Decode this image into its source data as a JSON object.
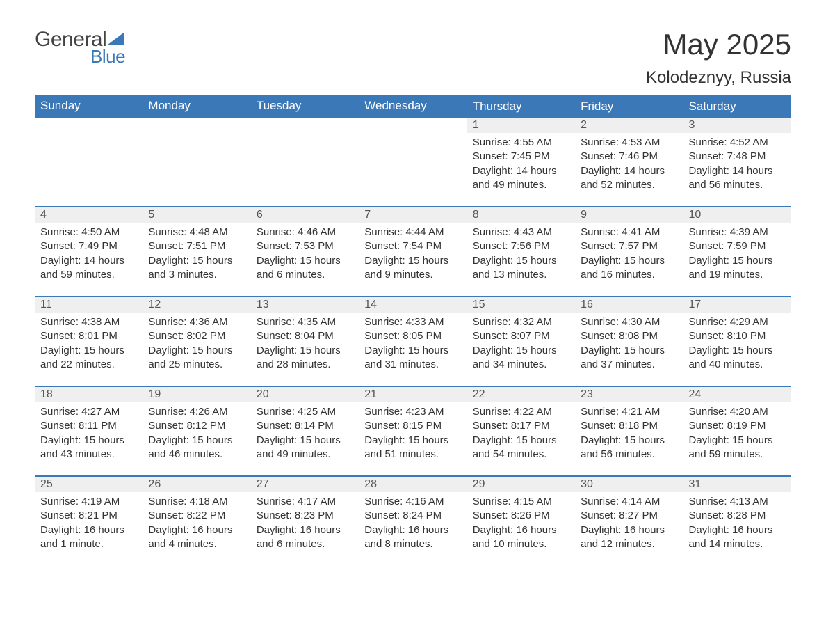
{
  "logo": {
    "word1": "General",
    "word2": "Blue",
    "accent_color": "#3b78b8"
  },
  "title": "May 2025",
  "subtitle": "Kolodeznyy, Russia",
  "header_bg": "#3b78b8",
  "header_fg": "#ffffff",
  "daynum_bg": "#efefef",
  "border_color": "#3b78b8",
  "text_color": "#333333",
  "background_color": "#ffffff",
  "columns": [
    "Sunday",
    "Monday",
    "Tuesday",
    "Wednesday",
    "Thursday",
    "Friday",
    "Saturday"
  ],
  "weeks": [
    [
      null,
      null,
      null,
      null,
      {
        "n": "1",
        "sr": "4:55 AM",
        "ss": "7:45 PM",
        "dl": "14 hours and 49 minutes."
      },
      {
        "n": "2",
        "sr": "4:53 AM",
        "ss": "7:46 PM",
        "dl": "14 hours and 52 minutes."
      },
      {
        "n": "3",
        "sr": "4:52 AM",
        "ss": "7:48 PM",
        "dl": "14 hours and 56 minutes."
      }
    ],
    [
      {
        "n": "4",
        "sr": "4:50 AM",
        "ss": "7:49 PM",
        "dl": "14 hours and 59 minutes."
      },
      {
        "n": "5",
        "sr": "4:48 AM",
        "ss": "7:51 PM",
        "dl": "15 hours and 3 minutes."
      },
      {
        "n": "6",
        "sr": "4:46 AM",
        "ss": "7:53 PM",
        "dl": "15 hours and 6 minutes."
      },
      {
        "n": "7",
        "sr": "4:44 AM",
        "ss": "7:54 PM",
        "dl": "15 hours and 9 minutes."
      },
      {
        "n": "8",
        "sr": "4:43 AM",
        "ss": "7:56 PM",
        "dl": "15 hours and 13 minutes."
      },
      {
        "n": "9",
        "sr": "4:41 AM",
        "ss": "7:57 PM",
        "dl": "15 hours and 16 minutes."
      },
      {
        "n": "10",
        "sr": "4:39 AM",
        "ss": "7:59 PM",
        "dl": "15 hours and 19 minutes."
      }
    ],
    [
      {
        "n": "11",
        "sr": "4:38 AM",
        "ss": "8:01 PM",
        "dl": "15 hours and 22 minutes."
      },
      {
        "n": "12",
        "sr": "4:36 AM",
        "ss": "8:02 PM",
        "dl": "15 hours and 25 minutes."
      },
      {
        "n": "13",
        "sr": "4:35 AM",
        "ss": "8:04 PM",
        "dl": "15 hours and 28 minutes."
      },
      {
        "n": "14",
        "sr": "4:33 AM",
        "ss": "8:05 PM",
        "dl": "15 hours and 31 minutes."
      },
      {
        "n": "15",
        "sr": "4:32 AM",
        "ss": "8:07 PM",
        "dl": "15 hours and 34 minutes."
      },
      {
        "n": "16",
        "sr": "4:30 AM",
        "ss": "8:08 PM",
        "dl": "15 hours and 37 minutes."
      },
      {
        "n": "17",
        "sr": "4:29 AM",
        "ss": "8:10 PM",
        "dl": "15 hours and 40 minutes."
      }
    ],
    [
      {
        "n": "18",
        "sr": "4:27 AM",
        "ss": "8:11 PM",
        "dl": "15 hours and 43 minutes."
      },
      {
        "n": "19",
        "sr": "4:26 AM",
        "ss": "8:12 PM",
        "dl": "15 hours and 46 minutes."
      },
      {
        "n": "20",
        "sr": "4:25 AM",
        "ss": "8:14 PM",
        "dl": "15 hours and 49 minutes."
      },
      {
        "n": "21",
        "sr": "4:23 AM",
        "ss": "8:15 PM",
        "dl": "15 hours and 51 minutes."
      },
      {
        "n": "22",
        "sr": "4:22 AM",
        "ss": "8:17 PM",
        "dl": "15 hours and 54 minutes."
      },
      {
        "n": "23",
        "sr": "4:21 AM",
        "ss": "8:18 PM",
        "dl": "15 hours and 56 minutes."
      },
      {
        "n": "24",
        "sr": "4:20 AM",
        "ss": "8:19 PM",
        "dl": "15 hours and 59 minutes."
      }
    ],
    [
      {
        "n": "25",
        "sr": "4:19 AM",
        "ss": "8:21 PM",
        "dl": "16 hours and 1 minute."
      },
      {
        "n": "26",
        "sr": "4:18 AM",
        "ss": "8:22 PM",
        "dl": "16 hours and 4 minutes."
      },
      {
        "n": "27",
        "sr": "4:17 AM",
        "ss": "8:23 PM",
        "dl": "16 hours and 6 minutes."
      },
      {
        "n": "28",
        "sr": "4:16 AM",
        "ss": "8:24 PM",
        "dl": "16 hours and 8 minutes."
      },
      {
        "n": "29",
        "sr": "4:15 AM",
        "ss": "8:26 PM",
        "dl": "16 hours and 10 minutes."
      },
      {
        "n": "30",
        "sr": "4:14 AM",
        "ss": "8:27 PM",
        "dl": "16 hours and 12 minutes."
      },
      {
        "n": "31",
        "sr": "4:13 AM",
        "ss": "8:28 PM",
        "dl": "16 hours and 14 minutes."
      }
    ]
  ],
  "labels": {
    "sunrise": "Sunrise: ",
    "sunset": "Sunset: ",
    "daylight": "Daylight: "
  }
}
